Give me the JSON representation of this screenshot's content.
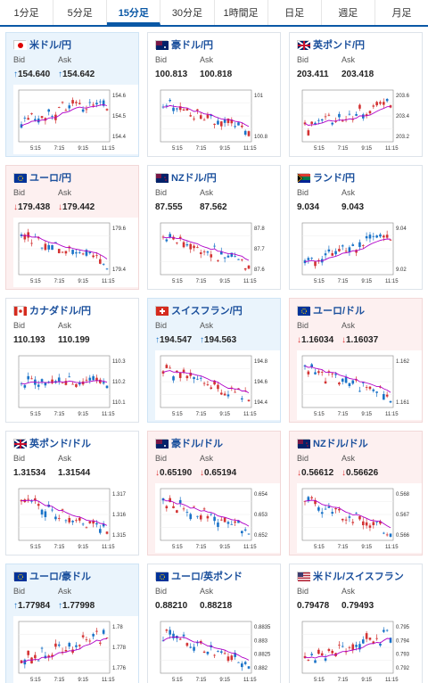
{
  "tabs": [
    {
      "label": "1分足",
      "active": false
    },
    {
      "label": "5分足",
      "active": false
    },
    {
      "label": "15分足",
      "active": true
    },
    {
      "label": "30分足",
      "active": false
    },
    {
      "label": "1時間足",
      "active": false
    },
    {
      "label": "日足",
      "active": false
    },
    {
      "label": "週足",
      "active": false
    },
    {
      "label": "月足",
      "active": false
    }
  ],
  "labels": {
    "bid": "Bid",
    "ask": "Ask"
  },
  "x_ticks": [
    "5:15",
    "7:15",
    "9:15",
    "11:15"
  ],
  "colors": {
    "up": "#1a73c8",
    "down": "#d33333",
    "ma": "#b000c8",
    "title": "#1a4f9c"
  },
  "pairs": [
    {
      "name": "米ドル/円",
      "flag": "jp-flag-icon",
      "bid": "154.640",
      "ask": "154.642",
      "bid_dir": "up",
      "ask_dir": "up",
      "card": "up",
      "y_ticks": [
        "154.6",
        "154.5",
        "154.4"
      ]
    },
    {
      "name": "豪ドル/円",
      "flag": "au-flag-icon",
      "bid": "100.813",
      "ask": "100.818",
      "bid_dir": "",
      "ask_dir": "",
      "card": "",
      "y_ticks": [
        "101",
        "100.8"
      ]
    },
    {
      "name": "英ポンド/円",
      "flag": "gb-flag-icon",
      "bid": "203.411",
      "ask": "203.418",
      "bid_dir": "",
      "ask_dir": "",
      "card": "",
      "y_ticks": [
        "203.6",
        "203.4",
        "203.2"
      ]
    },
    {
      "name": "ユーロ/円",
      "flag": "eu-flag-icon",
      "bid": "179.438",
      "ask": "179.442",
      "bid_dir": "down",
      "ask_dir": "down",
      "card": "down",
      "y_ticks": [
        "179.6",
        "179.4"
      ]
    },
    {
      "name": "NZドル/円",
      "flag": "nz-flag-icon",
      "bid": "87.555",
      "ask": "87.562",
      "bid_dir": "",
      "ask_dir": "",
      "card": "",
      "y_ticks": [
        "87.8",
        "87.7",
        "87.6"
      ]
    },
    {
      "name": "ランド/円",
      "flag": "za-flag-icon",
      "bid": "9.034",
      "ask": "9.043",
      "bid_dir": "",
      "ask_dir": "",
      "card": "",
      "y_ticks": [
        "9.04",
        "9.02"
      ]
    },
    {
      "name": "カナダドル/円",
      "flag": "ca-flag-icon",
      "bid": "110.193",
      "ask": "110.199",
      "bid_dir": "",
      "ask_dir": "",
      "card": "",
      "y_ticks": [
        "110.3",
        "110.2",
        "110.1"
      ]
    },
    {
      "name": "スイスフラン/円",
      "flag": "ch-flag-icon",
      "bid": "194.547",
      "ask": "194.563",
      "bid_dir": "up",
      "ask_dir": "up",
      "card": "up",
      "y_ticks": [
        "194.8",
        "194.6",
        "194.4"
      ]
    },
    {
      "name": "ユーロ/ドル",
      "flag": "eu-flag-icon",
      "bid": "1.16034",
      "ask": "1.16037",
      "bid_dir": "down",
      "ask_dir": "down",
      "card": "down",
      "y_ticks": [
        "1.162",
        "1.161"
      ]
    },
    {
      "name": "英ポンド/ドル",
      "flag": "gb-flag-icon",
      "bid": "1.31534",
      "ask": "1.31544",
      "bid_dir": "",
      "ask_dir": "",
      "card": "",
      "y_ticks": [
        "1.317",
        "1.316",
        "1.315"
      ]
    },
    {
      "name": "豪ドル/ドル",
      "flag": "au-flag-icon",
      "bid": "0.65190",
      "ask": "0.65194",
      "bid_dir": "down",
      "ask_dir": "down",
      "card": "down",
      "y_ticks": [
        "0.654",
        "0.653",
        "0.652"
      ]
    },
    {
      "name": "NZドル/ドル",
      "flag": "nz-flag-icon",
      "bid": "0.56612",
      "ask": "0.56626",
      "bid_dir": "down",
      "ask_dir": "down",
      "card": "down",
      "y_ticks": [
        "0.568",
        "0.567",
        "0.566"
      ]
    },
    {
      "name": "ユーロ/豪ドル",
      "flag": "eu-flag-icon",
      "bid": "1.77984",
      "ask": "1.77998",
      "bid_dir": "up",
      "ask_dir": "up",
      "card": "up",
      "y_ticks": [
        "1.78",
        "1.778",
        "1.776"
      ]
    },
    {
      "name": "ユーロ/英ポンド",
      "flag": "eu-flag-icon",
      "bid": "0.88210",
      "ask": "0.88218",
      "bid_dir": "",
      "ask_dir": "",
      "card": "",
      "y_ticks": [
        "0.8835",
        "0.883",
        "0.8825",
        "0.882"
      ]
    },
    {
      "name": "米ドル/スイスフラン",
      "flag": "us-flag-icon",
      "bid": "0.79478",
      "ask": "0.79493",
      "bid_dir": "",
      "ask_dir": "",
      "card": "",
      "y_ticks": [
        "0.795",
        "0.794",
        "0.793",
        "0.792"
      ]
    }
  ],
  "chart_data": [
    {
      "type": "candlestick",
      "pair": "米ドル/円",
      "trend": "up-flat"
    },
    {
      "type": "candlestick",
      "pair": "豪ドル/円",
      "trend": "down"
    },
    {
      "type": "candlestick",
      "pair": "英ポンド/円",
      "trend": "up"
    },
    {
      "type": "candlestick",
      "pair": "ユーロ/円",
      "trend": "down"
    },
    {
      "type": "candlestick",
      "pair": "NZドル/円",
      "trend": "down"
    },
    {
      "type": "candlestick",
      "pair": "ランド/円",
      "trend": "up"
    },
    {
      "type": "candlestick",
      "pair": "カナダドル/円",
      "trend": "flat"
    },
    {
      "type": "candlestick",
      "pair": "スイスフラン/円",
      "trend": "down"
    },
    {
      "type": "candlestick",
      "pair": "ユーロ/ドル",
      "trend": "down"
    },
    {
      "type": "candlestick",
      "pair": "英ポンド/ドル",
      "trend": "down"
    },
    {
      "type": "candlestick",
      "pair": "豪ドル/ドル",
      "trend": "down"
    },
    {
      "type": "candlestick",
      "pair": "NZドル/ドル",
      "trend": "down"
    },
    {
      "type": "candlestick",
      "pair": "ユーロ/豪ドル",
      "trend": "up"
    },
    {
      "type": "candlestick",
      "pair": "ユーロ/英ポンド",
      "trend": "down"
    },
    {
      "type": "candlestick",
      "pair": "米ドル/スイスフラン",
      "trend": "up"
    }
  ]
}
